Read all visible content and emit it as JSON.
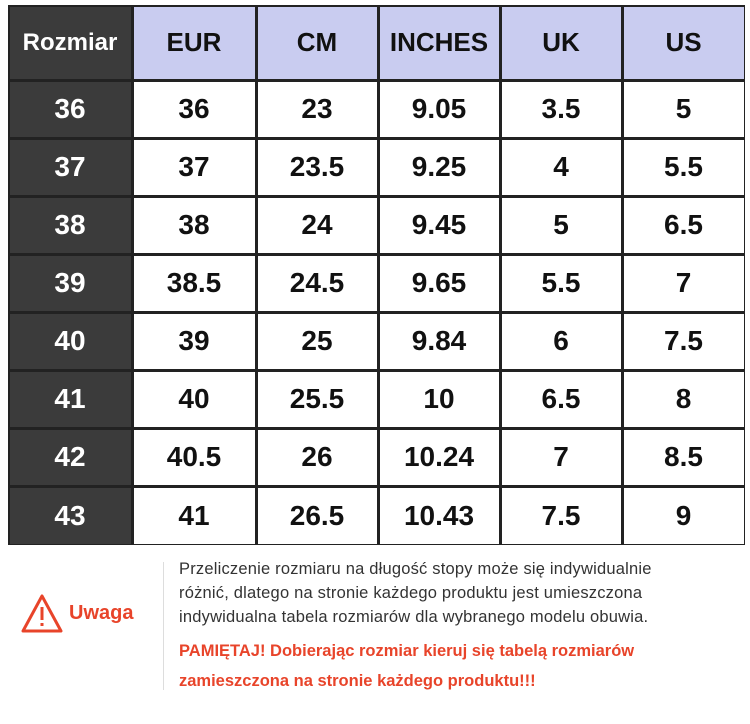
{
  "table": {
    "header": [
      "Rozmiar",
      "EUR",
      "CM",
      "INCHES",
      "UK",
      "US"
    ],
    "rows": [
      [
        "36",
        "36",
        "23",
        "9.05",
        "3.5",
        "5"
      ],
      [
        "37",
        "37",
        "23.5",
        "9.25",
        "4",
        "5.5"
      ],
      [
        "38",
        "38",
        "24",
        "9.45",
        "5",
        "6.5"
      ],
      [
        "39",
        "38.5",
        "24.5",
        "9.65",
        "5.5",
        "7"
      ],
      [
        "40",
        "39",
        "25",
        "9.84",
        "6",
        "7.5"
      ],
      [
        "41",
        "40",
        "25.5",
        "10",
        "6.5",
        "8"
      ],
      [
        "42",
        "40.5",
        "26",
        "10.24",
        "7",
        "8.5"
      ],
      [
        "43",
        "41",
        "26.5",
        "10.43",
        "7.5",
        "9"
      ]
    ]
  },
  "notice": {
    "label": "Uwaga",
    "lines": [
      "Przeliczenie rozmiaru na długość stopy może się indywidualnie",
      "różnić, dlatego na stronie każdego produktu jest umieszczona",
      "indywidualna tabela rozmiarów dla wybranego modelu obuwia."
    ],
    "reminder": [
      "PAMIĘTAJ! Dobierając rozmiar kieruj się tabelą rozmiarów",
      "zamieszczona na stronie każdego produktu!!!"
    ]
  }
}
